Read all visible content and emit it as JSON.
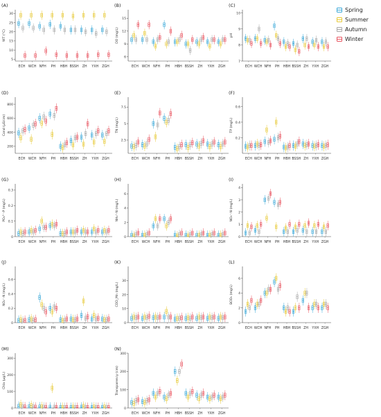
{
  "legend": {
    "title": "",
    "items": [
      {
        "label": "Spring",
        "color": "#3aa8d8"
      },
      {
        "label": "Summer",
        "color": "#e7c936"
      },
      {
        "label": "Autumn",
        "color": "#a9a9a9"
      },
      {
        "label": "Winter",
        "color": "#e8535f"
      }
    ]
  },
  "chart_data": [
    {
      "type": "box",
      "panel": "(A)",
      "ylabel": "WT (°C)",
      "categories": [
        "ECH",
        "WCH",
        "NFH",
        "PH",
        "HBH",
        "BSSH",
        "ZH",
        "YXH",
        "ZGH"
      ],
      "yticks": [
        5,
        10,
        15,
        20,
        25,
        30
      ],
      "ylim": [
        4,
        32
      ],
      "series": [
        {
          "name": "Spring",
          "medians": [
            24.5,
            24.5,
            23,
            24,
            23,
            21,
            21,
            21,
            21
          ]
        },
        {
          "name": "Summer",
          "medians": [
            29,
            29,
            29,
            29,
            29,
            28.5,
            29,
            29,
            29
          ]
        },
        {
          "name": "Autumn",
          "medians": [
            22,
            22,
            21,
            21,
            21,
            21,
            20,
            19,
            20
          ]
        },
        {
          "name": "Winter",
          "medians": [
            7,
            7,
            9.5,
            7.5,
            7,
            7,
            7,
            7.5,
            7.5
          ]
        }
      ]
    },
    {
      "type": "box",
      "panel": "(B)",
      "ylabel": "DO (mg/L)",
      "categories": [
        "ECH",
        "WCH",
        "NFH",
        "PH",
        "HBH",
        "BSSH",
        "ZH",
        "YXH",
        "ZGH"
      ],
      "yticks": [
        6,
        9,
        12,
        15
      ],
      "ylim": [
        5,
        17
      ],
      "series": [
        {
          "name": "Spring",
          "medians": [
            10,
            10,
            9.5,
            13.5,
            9.5,
            9,
            9.5,
            9.5,
            9.5
          ]
        },
        {
          "name": "Summer",
          "medians": [
            11,
            11.5,
            8.5,
            9,
            9.5,
            9,
            9,
            8.5,
            9
          ]
        },
        {
          "name": "Autumn",
          "medians": [
            10,
            10,
            10,
            9.5,
            10,
            7.5,
            10,
            10,
            10
          ]
        },
        {
          "name": "Winter",
          "medians": [
            13.5,
            13.5,
            10.5,
            12,
            11,
            10,
            10.5,
            10,
            10
          ]
        }
      ]
    },
    {
      "type": "box",
      "panel": "(C)",
      "ylabel": "pH",
      "categories": [
        "ECH",
        "WCH",
        "NFH",
        "PH",
        "HBH",
        "BSSH",
        "ZH",
        "YXH",
        "ZGH"
      ],
      "yticks": [
        7,
        8,
        9,
        10
      ],
      "ylim": [
        7,
        10.2
      ],
      "series": [
        {
          "name": "Spring",
          "medians": [
            8.4,
            8.4,
            8.3,
            9.2,
            8.2,
            8.1,
            8.4,
            8.2,
            8.2
          ]
        },
        {
          "name": "Summer",
          "medians": [
            8.3,
            8.4,
            8.2,
            8.6,
            7.9,
            7.7,
            8,
            8,
            7.9
          ]
        },
        {
          "name": "Autumn",
          "medians": [
            8.3,
            9,
            8.3,
            8.4,
            8.1,
            8,
            8.4,
            8.3,
            8.2
          ]
        },
        {
          "name": "Winter",
          "medians": [
            8.1,
            8.1,
            8,
            8.1,
            7.9,
            7.6,
            7.9,
            7.9,
            7.9
          ]
        }
      ]
    },
    {
      "type": "box",
      "panel": "(D)",
      "ylabel": "Cond (μS/cm)",
      "categories": [
        "ECH",
        "WCH",
        "NFH",
        "PH",
        "HBH",
        "BSSH",
        "ZH",
        "YXH",
        "ZGH"
      ],
      "yticks": [
        200,
        400,
        600,
        800
      ],
      "ylim": [
        100,
        900
      ],
      "series": [
        {
          "name": "Spring",
          "medians": [
            390,
            460,
            600,
            660,
            200,
            280,
            330,
            360,
            360
          ]
        },
        {
          "name": "Summer",
          "medians": [
            320,
            300,
            530,
            370,
            180,
            220,
            230,
            260,
            270
          ]
        },
        {
          "name": "Autumn",
          "medians": [
            420,
            500,
            620,
            640,
            220,
            320,
            380,
            380,
            380
          ]
        },
        {
          "name": "Winter",
          "medians": [
            440,
            520,
            560,
            740,
            250,
            330,
            520,
            420,
            420
          ]
        }
      ]
    },
    {
      "type": "box",
      "panel": "(E)",
      "ylabel": "TN (mg/L)",
      "categories": [
        "ECH",
        "WCH",
        "NFH",
        "PH",
        "HBH",
        "BSSH",
        "ZH",
        "YXH",
        "ZGH"
      ],
      "yticks": [
        2.5,
        5.0,
        7.5
      ],
      "ylim": [
        0.5,
        9
      ],
      "series": [
        {
          "name": "Spring",
          "medians": [
            1.6,
            1.8,
            5,
            5.8,
            1.4,
            1.8,
            1.9,
            1.9,
            1.8
          ]
        },
        {
          "name": "Summer",
          "medians": [
            1.5,
            1.6,
            3,
            5.2,
            1.2,
            1.4,
            1.6,
            1.5,
            1.5
          ]
        },
        {
          "name": "Autumn",
          "medians": [
            1.7,
            1.9,
            4.8,
            5.5,
            1.5,
            1.8,
            2,
            1.9,
            1.9
          ]
        },
        {
          "name": "Winter",
          "medians": [
            2.2,
            2.6,
            6.6,
            6.5,
            1.8,
            2.1,
            2.4,
            2.2,
            2.2
          ]
        }
      ]
    },
    {
      "type": "box",
      "panel": "(F)",
      "ylabel": "TP (mg/L)",
      "categories": [
        "ECH",
        "WCH",
        "NFH",
        "PH",
        "HBH",
        "BSSH",
        "ZH",
        "YXH",
        "ZGH"
      ],
      "yticks": [
        0.2,
        0.4,
        0.6
      ],
      "ylim": [
        0,
        0.72
      ],
      "series": [
        {
          "name": "Spring",
          "medians": [
            0.09,
            0.1,
            0.15,
            0.18,
            0.08,
            0.1,
            0.12,
            0.1,
            0.1
          ]
        },
        {
          "name": "Summer",
          "medians": [
            0.08,
            0.12,
            0.3,
            0.4,
            0.07,
            0.09,
            0.1,
            0.09,
            0.09
          ]
        },
        {
          "name": "Autumn",
          "medians": [
            0.1,
            0.1,
            0.14,
            0.2,
            0.08,
            0.12,
            0.11,
            0.1,
            0.1
          ]
        },
        {
          "name": "Winter",
          "medians": [
            0.1,
            0.11,
            0.16,
            0.22,
            0.1,
            0.15,
            0.12,
            0.11,
            0.11
          ]
        }
      ]
    },
    {
      "type": "box",
      "panel": "(G)",
      "ylabel": "PO₄³⁻-P (mg/L)",
      "categories": [
        "ECH",
        "WCH",
        "NFH",
        "PH",
        "HBH",
        "BSSH",
        "ZH",
        "YXH",
        "ZGH"
      ],
      "yticks": [
        0,
        0.1,
        0.2,
        0.3
      ],
      "ylim": [
        0,
        0.34
      ],
      "series": [
        {
          "name": "Spring",
          "medians": [
            0.02,
            0.03,
            0.05,
            0.07,
            0.02,
            0.03,
            0.03,
            0.03,
            0.03
          ]
        },
        {
          "name": "Summer",
          "medians": [
            0.03,
            0.04,
            0.1,
            0.08,
            0.02,
            0.03,
            0.04,
            0.05,
            0.04
          ]
        },
        {
          "name": "Autumn",
          "medians": [
            0.02,
            0.03,
            0.06,
            0.07,
            0.02,
            0.03,
            0.03,
            0.03,
            0.03
          ]
        },
        {
          "name": "Winter",
          "medians": [
            0.03,
            0.04,
            0.06,
            0.08,
            0.03,
            0.04,
            0.03,
            0.04,
            0.04
          ]
        }
      ]
    },
    {
      "type": "box",
      "panel": "(H)",
      "ylabel": "NH₄⁺-N (mg/L)",
      "categories": [
        "ECH",
        "WCH",
        "NFH",
        "PH",
        "HBH",
        "BSSH",
        "ZH",
        "YXH",
        "ZGH"
      ],
      "yticks": [
        0,
        2,
        4,
        6
      ],
      "ylim": [
        0,
        7.4
      ],
      "series": [
        {
          "name": "Spring",
          "medians": [
            0.2,
            0.2,
            1.5,
            2.5,
            0.2,
            0.2,
            0.2,
            0.2,
            0.2
          ]
        },
        {
          "name": "Summer",
          "medians": [
            0.1,
            0.2,
            2.5,
            1.5,
            0.1,
            0.1,
            0.2,
            0.2,
            0.2
          ]
        },
        {
          "name": "Autumn",
          "medians": [
            0.3,
            0.3,
            1.5,
            2,
            0.3,
            0.3,
            0.3,
            0.3,
            0.3
          ]
        },
        {
          "name": "Winter",
          "medians": [
            0.5,
            0.5,
            2.5,
            2.5,
            0.5,
            0.5,
            0.5,
            0.5,
            0.5
          ]
        }
      ]
    },
    {
      "type": "box",
      "panel": "(I)",
      "ylabel": "NO₃⁻-N (mg/L)",
      "categories": [
        "ECH",
        "WCH",
        "NFH",
        "PH",
        "HBH",
        "BSSH",
        "ZH",
        "YXH",
        "ZGH"
      ],
      "yticks": [
        0,
        1,
        2,
        3,
        4
      ],
      "ylim": [
        0,
        4.3
      ],
      "series": [
        {
          "name": "Spring",
          "medians": [
            0.3,
            0.5,
            3,
            2.8,
            0.4,
            0.4,
            0.5,
            0.4,
            0.4
          ]
        },
        {
          "name": "Summer",
          "medians": [
            0.9,
            0.9,
            1.5,
            0.8,
            0.7,
            0.8,
            0.9,
            0.9,
            0.8
          ]
        },
        {
          "name": "Autumn",
          "medians": [
            0.3,
            0.4,
            3.1,
            2.6,
            0.4,
            0.5,
            0.4,
            0.4,
            0.4
          ]
        },
        {
          "name": "Winter",
          "medians": [
            0.8,
            1,
            3.5,
            2.8,
            1,
            1,
            1.1,
            1,
            0.9
          ]
        }
      ]
    },
    {
      "type": "box",
      "panel": "(J)",
      "ylabel": "NO₂⁻-N (mg/L)",
      "categories": [
        "ECH",
        "WCH",
        "NFH",
        "PH",
        "HBH",
        "BSSH",
        "ZH",
        "YXH",
        "ZGH"
      ],
      "yticks": [
        0,
        0.2,
        0.4,
        0.6
      ],
      "ylim": [
        0,
        0.78
      ],
      "series": [
        {
          "name": "Spring",
          "medians": [
            0.03,
            0.04,
            0.35,
            0.2,
            0.04,
            0.05,
            0.1,
            0.05,
            0.05
          ]
        },
        {
          "name": "Summer",
          "medians": [
            0.04,
            0.05,
            0.25,
            0.15,
            0.03,
            0.04,
            0.3,
            0.1,
            0.04
          ]
        },
        {
          "name": "Autumn",
          "medians": [
            0.02,
            0.03,
            0.2,
            0.22,
            0.03,
            0.04,
            0.06,
            0.05,
            0.04
          ]
        },
        {
          "name": "Winter",
          "medians": [
            0.03,
            0.04,
            0.15,
            0.2,
            0.05,
            0.05,
            0.08,
            0.06,
            0.05
          ]
        }
      ]
    },
    {
      "type": "box",
      "panel": "(K)",
      "ylabel": "COD_Mn (mg/L)",
      "categories": [
        "ECH",
        "WCH",
        "NFH",
        "PH",
        "HBH",
        "BSSH",
        "ZH",
        "YXH",
        "ZGH"
      ],
      "yticks": [
        0,
        10,
        20,
        30
      ],
      "ylim": [
        0,
        40
      ],
      "series": [
        {
          "name": "Spring",
          "medians": [
            3,
            3,
            3.5,
            4,
            2.5,
            3,
            3,
            3,
            3
          ]
        },
        {
          "name": "Summer",
          "medians": [
            4,
            4,
            4,
            8,
            3,
            3.5,
            4,
            4,
            4
          ]
        },
        {
          "name": "Autumn",
          "medians": [
            3.5,
            3.5,
            3.5,
            4,
            3,
            3,
            3.5,
            3.5,
            3.5
          ]
        },
        {
          "name": "Winter",
          "medians": [
            4,
            4.5,
            4,
            4,
            3.5,
            4,
            4,
            4,
            4
          ]
        }
      ]
    },
    {
      "type": "box",
      "panel": "(L)",
      "ylabel": "BOD₅ (mg/L)",
      "categories": [
        "ECH",
        "WCH",
        "NFH",
        "PH",
        "HBH",
        "BSSH",
        "ZH",
        "YXH",
        "ZGH"
      ],
      "yticks": [
        0,
        2,
        4,
        6
      ],
      "ylim": [
        0,
        7.6
      ],
      "series": [
        {
          "name": "Spring",
          "medians": [
            1.5,
            2,
            4,
            5.5,
            2,
            1.5,
            3,
            2,
            2
          ]
        },
        {
          "name": "Summer",
          "medians": [
            2.5,
            2.5,
            4,
            6,
            1.5,
            2,
            4,
            2.5,
            2.5
          ]
        },
        {
          "name": "Autumn",
          "medians": [
            2,
            2.5,
            4.5,
            4.5,
            2,
            3.5,
            4,
            2.5,
            2.5
          ]
        },
        {
          "name": "Winter",
          "medians": [
            3,
            3,
            4.5,
            5,
            1.5,
            2,
            2,
            2,
            2
          ]
        }
      ]
    },
    {
      "type": "box",
      "panel": "(M)",
      "ylabel": "Chla (μg/L)",
      "categories": [
        "ECH",
        "WCH",
        "NFH",
        "PH",
        "HBH",
        "BSSH",
        "ZH",
        "YXH",
        "ZGH"
      ],
      "yticks": [
        0,
        100,
        200,
        300
      ],
      "ylim": [
        0,
        330
      ],
      "series": [
        {
          "name": "Spring",
          "medians": [
            10,
            8,
            6,
            5,
            3,
            3,
            5,
            4,
            4
          ]
        },
        {
          "name": "Summer",
          "medians": [
            20,
            15,
            8,
            120,
            4,
            5,
            10,
            6,
            6
          ]
        },
        {
          "name": "Autumn",
          "medians": [
            8,
            6,
            5,
            5,
            3,
            3,
            4,
            4,
            4
          ]
        },
        {
          "name": "Winter",
          "medians": [
            6,
            5,
            4,
            4,
            3,
            3,
            3,
            3,
            3
          ]
        }
      ]
    },
    {
      "type": "box",
      "panel": "(N)",
      "ylabel": "Transparency (cm)",
      "categories": [
        "ECH",
        "WCH",
        "NFH",
        "PH",
        "HBH",
        "BSSH",
        "ZH",
        "YXH",
        "ZGH"
      ],
      "yticks": [
        0,
        100,
        200,
        300
      ],
      "ylim": [
        0,
        300
      ],
      "series": [
        {
          "name": "Spring",
          "medians": [
            30,
            35,
            80,
            60,
            200,
            80,
            70,
            60,
            60
          ]
        },
        {
          "name": "Summer",
          "medians": [
            25,
            30,
            60,
            50,
            150,
            60,
            50,
            50,
            50
          ]
        },
        {
          "name": "Autumn",
          "medians": [
            40,
            40,
            80,
            70,
            200,
            80,
            70,
            60,
            60
          ]
        },
        {
          "name": "Winter",
          "medians": [
            45,
            45,
            90,
            80,
            240,
            90,
            80,
            70,
            70
          ]
        }
      ]
    }
  ]
}
